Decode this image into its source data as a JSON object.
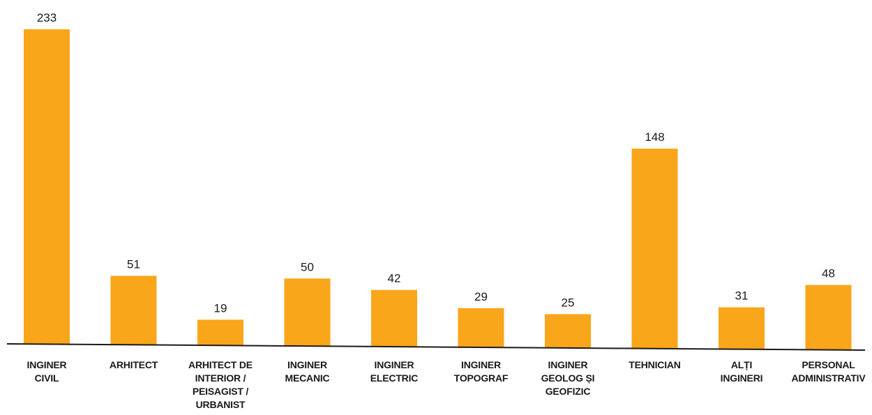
{
  "chart_data": {
    "type": "bar",
    "title": "",
    "xlabel": "",
    "ylabel": "",
    "ylim": [
      0,
      233
    ],
    "grid": false,
    "legend": "none",
    "bar_color": "#f9a61a",
    "axis_color": "#1a1a1a",
    "categories": [
      [
        "INGINER",
        "CIVIL"
      ],
      [
        "ARHITECT"
      ],
      [
        "ARHITECT DE",
        "INTERIOR /",
        "PEISAGIST /",
        "URBANIST"
      ],
      [
        "INGINER",
        "MECANIC"
      ],
      [
        "INGINER",
        "ELECTRIC"
      ],
      [
        "INGINER",
        "TOPOGRAF"
      ],
      [
        "INGINER",
        "GEOLOG ȘI",
        "GEOFIZIC"
      ],
      [
        "TEHNICIAN"
      ],
      [
        "ALȚI",
        "INGINERI"
      ],
      [
        "PERSONAL",
        "ADMINISTRATIV"
      ]
    ],
    "values": [
      233,
      51,
      19,
      50,
      42,
      29,
      25,
      148,
      31,
      48
    ],
    "data_labels": [
      "233",
      "51",
      "19",
      "50",
      "42",
      "29",
      "25",
      "148",
      "31",
      "48"
    ]
  }
}
